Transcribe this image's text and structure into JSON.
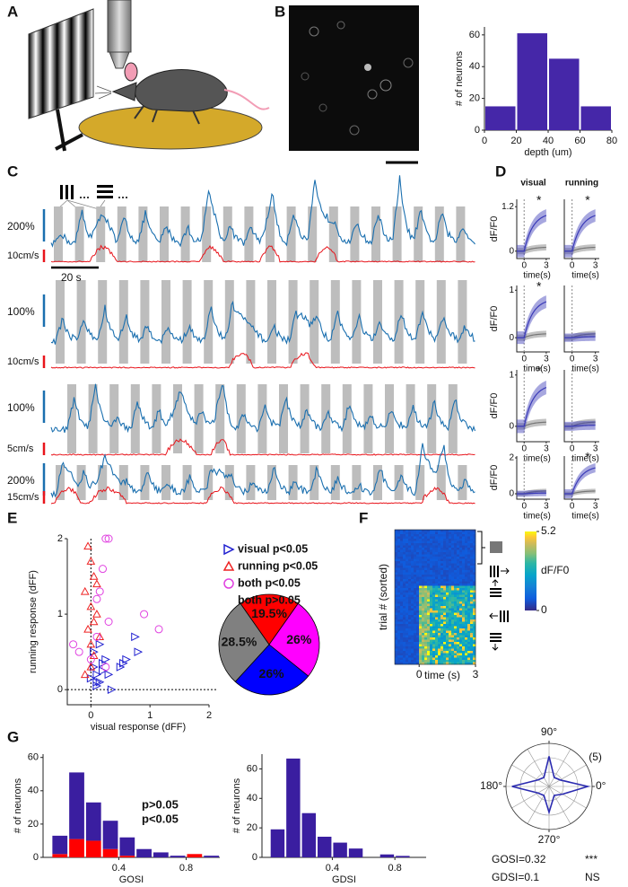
{
  "panel_labels": [
    "A",
    "B",
    "C",
    "D",
    "E",
    "F",
    "G"
  ],
  "panel_c": {
    "rows": [
      {
        "df_scale": "200%",
        "speed_scale": "10cm/s"
      },
      {
        "df_scale": "100%",
        "speed_scale": "10cm/s"
      },
      {
        "df_scale": "100%",
        "speed_scale": "5cm/s"
      },
      {
        "df_scale": "200%",
        "speed_scale": "15cm/s"
      }
    ],
    "time_scale": "20 s"
  },
  "panel_d": {
    "columns": [
      "visual",
      "running"
    ],
    "ylabel": "dF/F0",
    "xlabel": "time(s)",
    "xlim": [
      -1,
      3.5
    ],
    "xticks": [
      0,
      3
    ],
    "rows": [
      {
        "ylim": [
          -0.2,
          1.4
        ],
        "yticks": [
          0,
          1.2
        ],
        "significance": [
          "*",
          "*"
        ]
      },
      {
        "ylim": [
          -0.3,
          1.1
        ],
        "yticks": [
          0,
          1
        ],
        "significance": [
          "*",
          null
        ]
      },
      {
        "ylim": [
          -0.3,
          1.1
        ],
        "yticks": [
          0,
          1
        ],
        "significance": [
          "*",
          null
        ]
      },
      {
        "ylim": [
          -0.3,
          2.1
        ],
        "yticks": [
          0,
          2
        ],
        "significance": [
          null,
          "*"
        ]
      }
    ]
  },
  "panel_f": {
    "ylabel": "trial # (sorted)",
    "xlabel": "time (s)",
    "xlim": [
      -1.3,
      3
    ],
    "xticks": [
      0,
      3
    ],
    "colorbar_label": "dF/F0",
    "clim": [
      0,
      5.2
    ],
    "cticks": [
      0,
      5.2
    ]
  },
  "chart_data": [
    {
      "type": "histogram",
      "ylabel": "# of neurons",
      "xlabel": "depth (um)",
      "bins": [
        0,
        20,
        40,
        60,
        80
      ],
      "values": [
        15,
        61,
        45,
        15
      ],
      "color": "#4527a8",
      "xlim": [
        0,
        80
      ],
      "xticks": [
        0,
        20,
        40,
        60,
        80
      ],
      "ylim": [
        0,
        65
      ],
      "yticks": [
        0,
        20,
        40,
        60
      ]
    },
    {
      "type": "scatter",
      "xlabel": "visual response (dFF)",
      "ylabel": "running response (dFF)",
      "xlim": [
        -0.4,
        2
      ],
      "xticks": [
        0,
        1,
        2
      ],
      "ylim": [
        -0.2,
        2
      ],
      "yticks": [
        0,
        1,
        2
      ],
      "series": [
        {
          "marker": "triangle-right",
          "color": "#2020d0",
          "x": [
            0.05,
            0.1,
            0.15,
            0.2,
            0.25,
            0.3,
            0.1,
            0.05,
            0.2,
            0.35,
            0.5,
            0.6,
            0.75,
            0.8,
            0.55,
            0.0,
            0.15,
            0.1
          ],
          "y": [
            0.3,
            0.2,
            0.1,
            0.35,
            0.4,
            0.2,
            0.05,
            0.5,
            0.25,
            0.0,
            0.3,
            0.4,
            0.7,
            0.5,
            0.35,
            0.15,
            0.6,
            0.1
          ]
        },
        {
          "marker": "triangle-up",
          "color": "#ee2222",
          "x": [
            -0.05,
            0.0,
            0.05,
            -0.1,
            0.0,
            0.1,
            0.05,
            -0.05,
            0.15,
            0.0,
            0.1,
            -0.1,
            0.05,
            0.0
          ],
          "y": [
            1.9,
            1.7,
            1.5,
            1.3,
            1.1,
            1.0,
            0.9,
            0.8,
            0.7,
            0.6,
            1.4,
            0.2,
            0.45,
            0.3
          ]
        },
        {
          "marker": "circle",
          "color": "#e040e0",
          "x": [
            0.25,
            0.3,
            0.2,
            0.15,
            0.1,
            -0.2,
            -0.3,
            0.0,
            0.3,
            0.9,
            1.15,
            0.25,
            0.1
          ],
          "y": [
            2.0,
            2.0,
            1.6,
            1.3,
            1.2,
            0.5,
            0.6,
            0.4,
            0.9,
            1.0,
            0.8,
            0.3,
            0.7
          ]
        }
      ]
    },
    {
      "type": "pie",
      "categories": [
        "running p<0.05",
        "both p<0.05",
        "visual p<0.05",
        "both p>0.05"
      ],
      "values": [
        19.5,
        26,
        26,
        28.5
      ],
      "value_labels": [
        "19.5%",
        "26%",
        "26%",
        "28.5%"
      ],
      "colors": [
        "#ff0000",
        "#ff00ff",
        "#0000ff",
        "#808080"
      ]
    },
    {
      "type": "polar",
      "theta": [
        0,
        30,
        60,
        90,
        120,
        150,
        180,
        210,
        240,
        270,
        300,
        330
      ],
      "values": [
        4.5,
        1.5,
        1.2,
        3.5,
        1.2,
        1.5,
        4.3,
        1.5,
        1.2,
        3,
        1.2,
        1.8
      ],
      "color": "#2b2bb0",
      "rlim": [
        0,
        5
      ],
      "rticks": [
        {
          "value": 5,
          "label": "(5)"
        }
      ],
      "thetaticks": [
        {
          "value": 0,
          "label": "0°"
        },
        {
          "value": 90,
          "label": "90°"
        },
        {
          "value": 180,
          "label": "180°"
        },
        {
          "value": 270,
          "label": "270°"
        }
      ],
      "annotations": [
        "GOSI=0.32",
        "***",
        "GDSI=0.1",
        "NS"
      ]
    },
    {
      "type": "histogram",
      "ylabel": "# of neurons",
      "xlabel": "GOSI",
      "bins": [
        0,
        0.1,
        0.2,
        0.3,
        0.4,
        0.5,
        0.6,
        0.7,
        0.8,
        0.9,
        1.0
      ],
      "series": [
        {
          "name": "p<0.05",
          "color": "#ff0000",
          "values": [
            2,
            11,
            10,
            5,
            1,
            0,
            0,
            0,
            2,
            0
          ]
        },
        {
          "name": "p>0.05",
          "color": "#3a1ea0",
          "values": [
            11,
            40,
            23,
            17,
            11,
            5,
            3,
            1,
            0,
            1
          ]
        }
      ],
      "xlim": [
        -0.05,
        1.0
      ],
      "xticks": [
        0.4,
        0.8
      ],
      "ylim": [
        0,
        62
      ],
      "yticks": [
        0,
        20,
        40,
        60
      ]
    },
    {
      "type": "histogram",
      "ylabel": "# of neurons",
      "xlabel": "GDSI",
      "bins": [
        0,
        0.1,
        0.2,
        0.3,
        0.4,
        0.5,
        0.6,
        0.7,
        0.8,
        0.9,
        1.0
      ],
      "values": [
        19,
        67,
        30,
        14,
        10,
        6,
        0,
        2,
        1,
        0
      ],
      "color": "#3a1ea0",
      "xlim": [
        -0.05,
        1.0
      ],
      "xticks": [
        0.4,
        0.8
      ],
      "ylim": [
        0,
        70
      ],
      "yticks": [
        0,
        20,
        40,
        60
      ]
    }
  ]
}
